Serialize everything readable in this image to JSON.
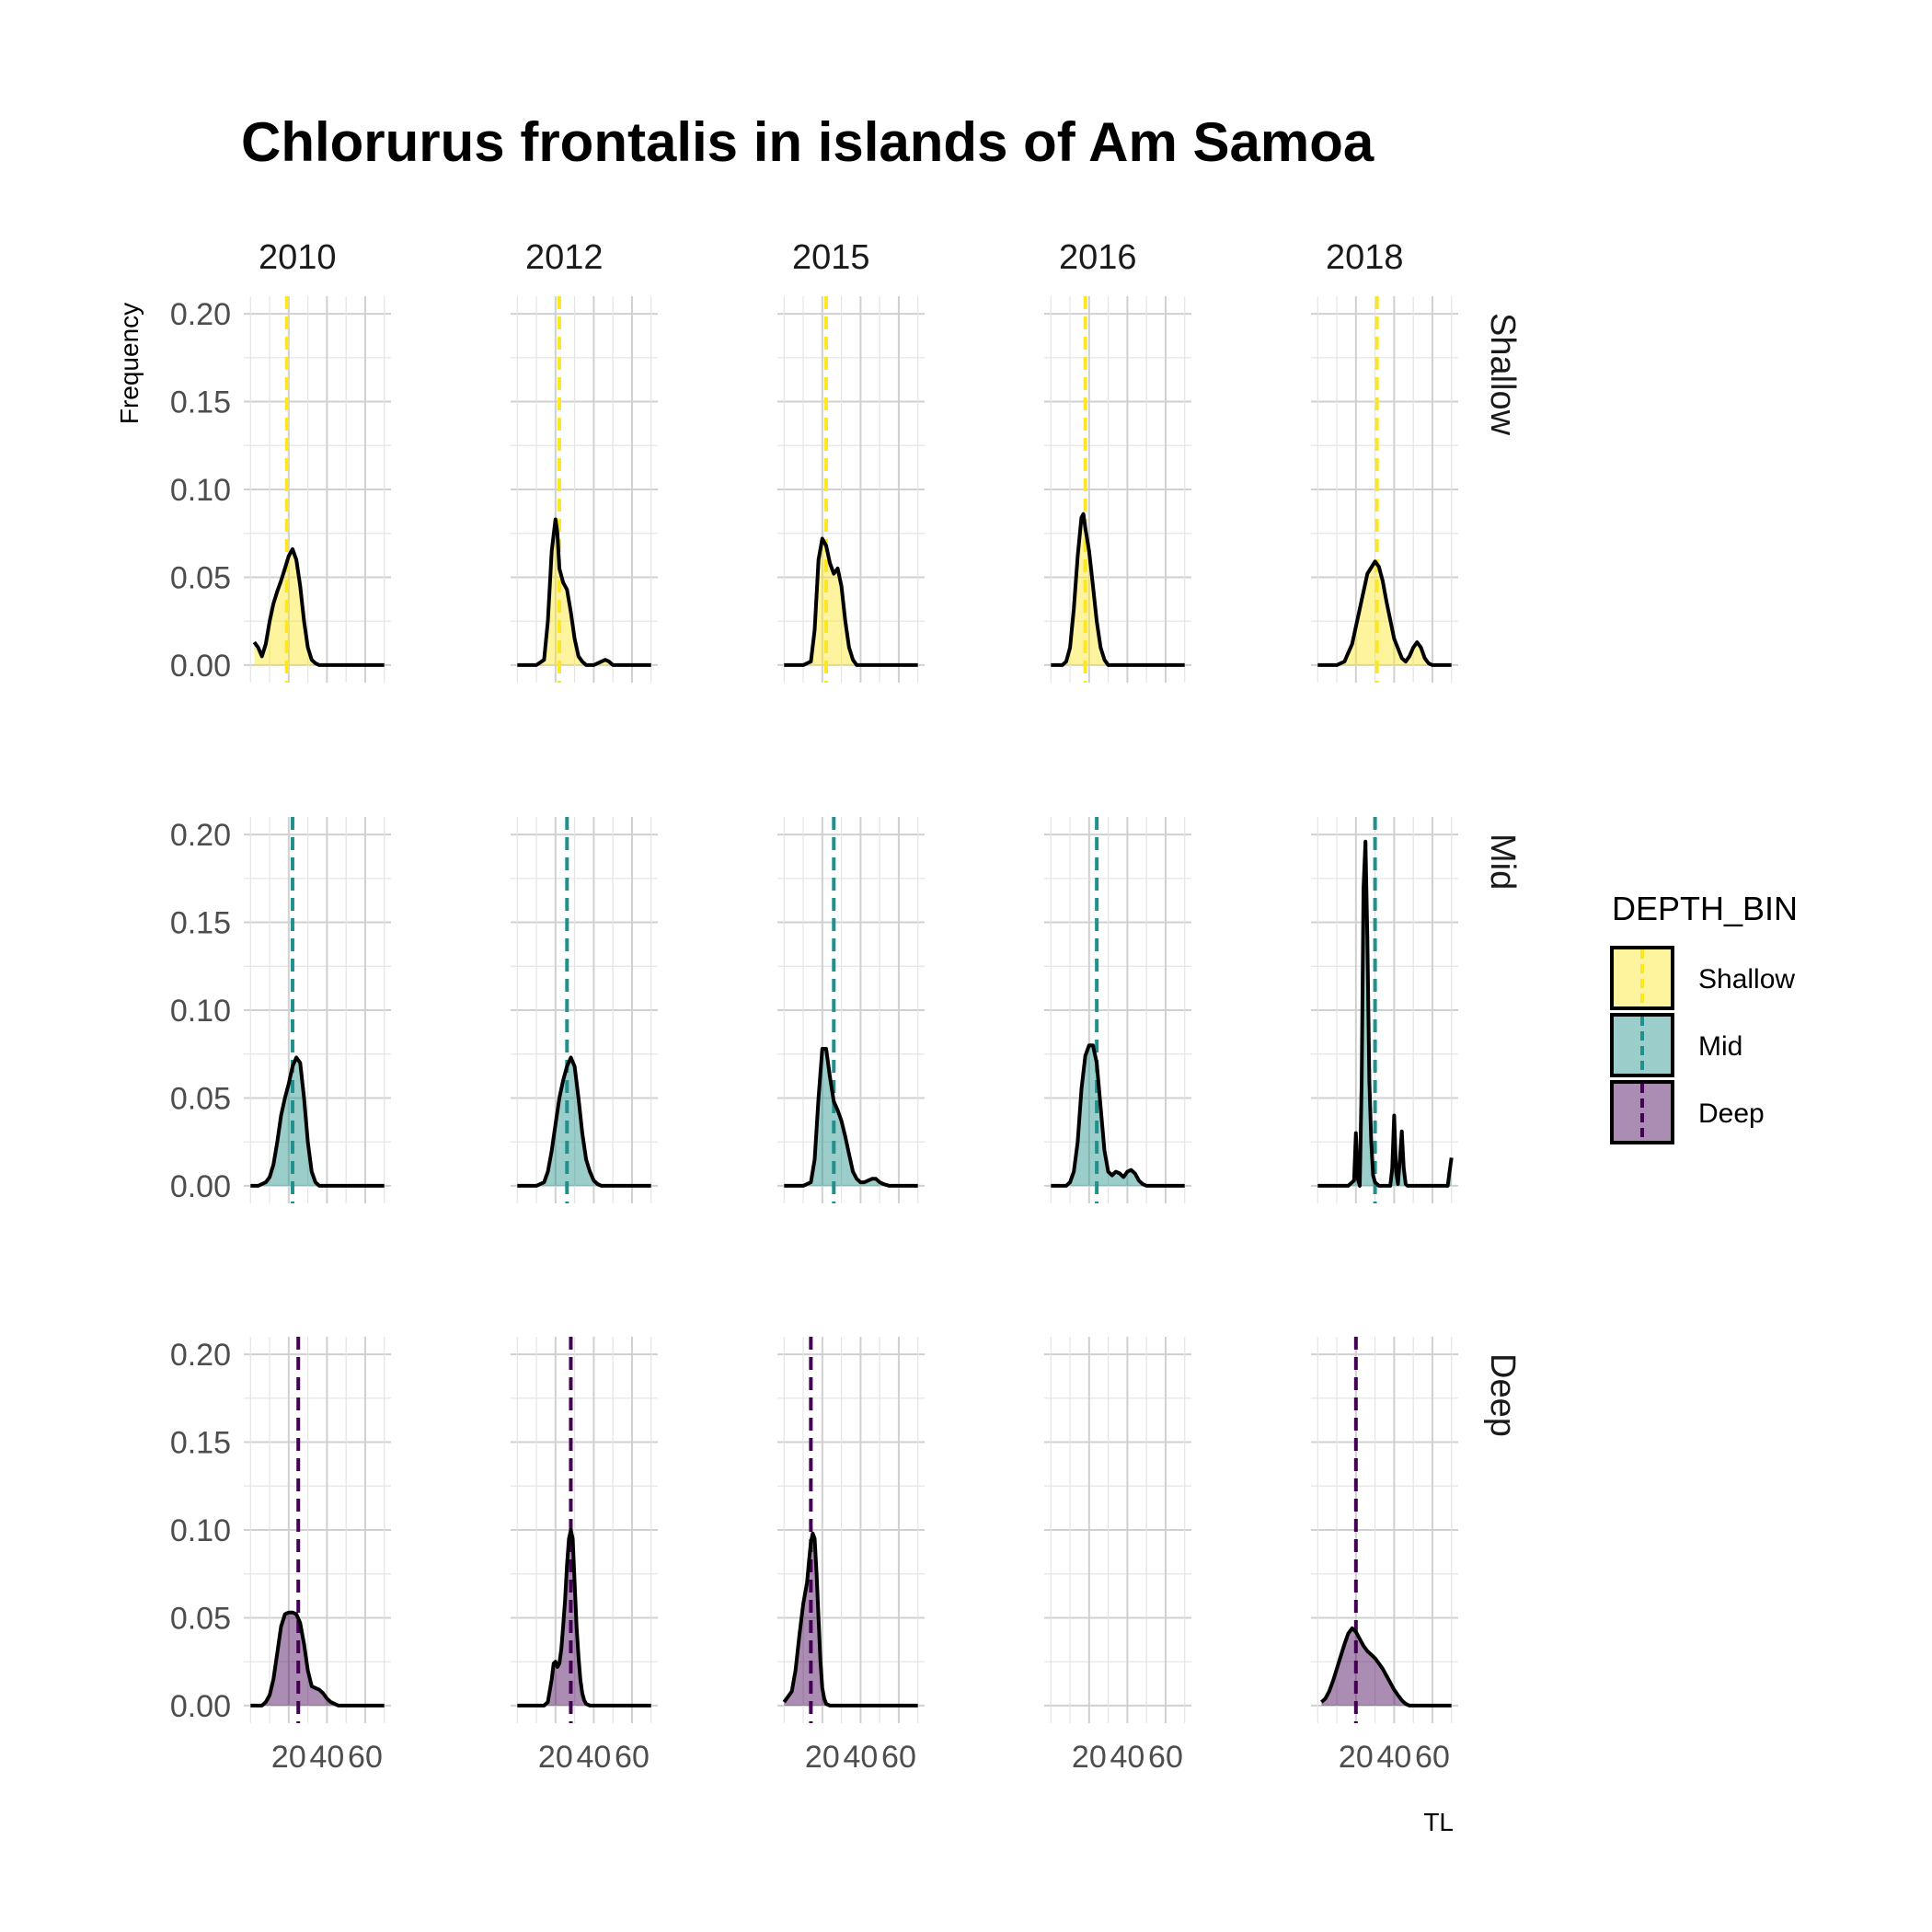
{
  "chart_data": {
    "type": "area",
    "title": "Chlorurus frontalis in islands of Am Samoa",
    "xlabel": "TL",
    "ylabel": "Frequency",
    "ylim": [
      0,
      0.2
    ],
    "yticks": [
      "0.00",
      "0.05",
      "0.10",
      "0.15",
      "0.20"
    ],
    "xlim": [
      0,
      70
    ],
    "xticks": [
      {
        "value": 20,
        "label": "20"
      },
      {
        "value": 40,
        "label": "40"
      },
      {
        "value": 60,
        "label": "60"
      }
    ],
    "grid": true,
    "columns": [
      "2010",
      "2012",
      "2015",
      "2016",
      "2018"
    ],
    "rows": [
      "Shallow",
      "Mid",
      "Deep"
    ],
    "legend": {
      "title": "DEPTH_BIN",
      "position": "right",
      "items": [
        {
          "label": "Shallow",
          "fill": "#FDE725",
          "line": "#FDE725"
        },
        {
          "label": "Mid",
          "fill": "#21908C",
          "line": "#21908C"
        },
        {
          "label": "Deep",
          "fill": "#440154",
          "line": "#440154"
        }
      ]
    },
    "fill_opacity": 0.45,
    "curve_color": "#000000",
    "panels": [
      {
        "row": "Shallow",
        "col": "2010",
        "mean": 19,
        "x": [
          2,
          4,
          6,
          8,
          10,
          12,
          14,
          16,
          18,
          20,
          22,
          24,
          26,
          28,
          30,
          32,
          34,
          36,
          38,
          40,
          45,
          50,
          55,
          60,
          65,
          70
        ],
        "y": [
          0.013,
          0.01,
          0.005,
          0.012,
          0.025,
          0.035,
          0.042,
          0.048,
          0.055,
          0.062,
          0.066,
          0.06,
          0.045,
          0.025,
          0.01,
          0.003,
          0.001,
          0,
          0,
          0,
          0,
          0,
          0,
          0,
          0,
          0
        ]
      },
      {
        "row": "Shallow",
        "col": "2012",
        "mean": 22,
        "x": [
          0,
          10,
          14,
          16,
          18,
          20,
          21,
          22,
          24,
          26,
          28,
          30,
          32,
          34,
          36,
          40,
          44,
          46,
          48,
          50,
          55,
          60,
          70
        ],
        "y": [
          0,
          0,
          0.003,
          0.025,
          0.065,
          0.083,
          0.075,
          0.055,
          0.047,
          0.043,
          0.03,
          0.015,
          0.005,
          0.002,
          0,
          0,
          0.002,
          0.003,
          0.002,
          0,
          0,
          0,
          0
        ]
      },
      {
        "row": "Shallow",
        "col": "2015",
        "mean": 22,
        "x": [
          0,
          10,
          14,
          16,
          18,
          20,
          22,
          24,
          26,
          28,
          30,
          32,
          34,
          36,
          38,
          40,
          45,
          70
        ],
        "y": [
          0,
          0,
          0.002,
          0.02,
          0.06,
          0.072,
          0.068,
          0.058,
          0.052,
          0.055,
          0.045,
          0.025,
          0.01,
          0.003,
          0,
          0,
          0,
          0
        ]
      },
      {
        "row": "Shallow",
        "col": "2016",
        "mean": 18,
        "x": [
          0,
          6,
          8,
          10,
          12,
          14,
          16,
          17,
          18,
          20,
          22,
          24,
          26,
          28,
          30,
          32,
          34,
          70
        ],
        "y": [
          0,
          0,
          0.002,
          0.01,
          0.032,
          0.062,
          0.084,
          0.086,
          0.078,
          0.065,
          0.045,
          0.025,
          0.01,
          0.003,
          0,
          0,
          0,
          0
        ]
      },
      {
        "row": "Shallow",
        "col": "2018",
        "mean": 31,
        "x": [
          0,
          10,
          14,
          18,
          22,
          26,
          30,
          32,
          34,
          36,
          40,
          44,
          46,
          48,
          50,
          52,
          54,
          56,
          58,
          60,
          70
        ],
        "y": [
          0,
          0,
          0.002,
          0.012,
          0.032,
          0.052,
          0.059,
          0.056,
          0.048,
          0.036,
          0.015,
          0.004,
          0.002,
          0.005,
          0.01,
          0.013,
          0.01,
          0.004,
          0.001,
          0,
          0
        ]
      },
      {
        "row": "Mid",
        "col": "2010",
        "mean": 22,
        "x": [
          0,
          4,
          8,
          10,
          12,
          14,
          16,
          18,
          20,
          22,
          24,
          26,
          28,
          30,
          32,
          34,
          36,
          38,
          40,
          45,
          70
        ],
        "y": [
          0,
          0,
          0.002,
          0.005,
          0.012,
          0.025,
          0.04,
          0.05,
          0.058,
          0.068,
          0.073,
          0.07,
          0.05,
          0.025,
          0.008,
          0.002,
          0,
          0,
          0,
          0,
          0
        ]
      },
      {
        "row": "Mid",
        "col": "2012",
        "mean": 26,
        "x": [
          0,
          10,
          14,
          16,
          18,
          20,
          22,
          24,
          26,
          28,
          30,
          32,
          34,
          36,
          38,
          40,
          42,
          44,
          46,
          70
        ],
        "y": [
          0,
          0,
          0.002,
          0.008,
          0.02,
          0.035,
          0.05,
          0.06,
          0.068,
          0.073,
          0.068,
          0.05,
          0.03,
          0.015,
          0.008,
          0.003,
          0.001,
          0,
          0,
          0
        ]
      },
      {
        "row": "Mid",
        "col": "2015",
        "mean": 26,
        "x": [
          0,
          10,
          14,
          16,
          18,
          20,
          22,
          24,
          26,
          28,
          30,
          32,
          34,
          36,
          38,
          40,
          42,
          44,
          46,
          48,
          50,
          52,
          55,
          60,
          70
        ],
        "y": [
          0,
          0,
          0.002,
          0.015,
          0.05,
          0.078,
          0.078,
          0.062,
          0.048,
          0.043,
          0.037,
          0.028,
          0.018,
          0.008,
          0.004,
          0.002,
          0.002,
          0.003,
          0.004,
          0.004,
          0.002,
          0.001,
          0,
          0,
          0
        ]
      },
      {
        "row": "Mid",
        "col": "2016",
        "mean": 24,
        "x": [
          0,
          8,
          10,
          12,
          14,
          16,
          18,
          20,
          22,
          24,
          26,
          28,
          30,
          32,
          34,
          36,
          38,
          40,
          42,
          44,
          46,
          48,
          50,
          52,
          70
        ],
        "y": [
          0,
          0,
          0.002,
          0.008,
          0.025,
          0.055,
          0.074,
          0.08,
          0.08,
          0.07,
          0.045,
          0.02,
          0.008,
          0.006,
          0.008,
          0.007,
          0.005,
          0.008,
          0.009,
          0.007,
          0.003,
          0.001,
          0,
          0,
          0
        ]
      },
      {
        "row": "Mid",
        "col": "2018",
        "mean": 30,
        "x": [
          0,
          16,
          19,
          20,
          21,
          22,
          23,
          24,
          25,
          26,
          27,
          28,
          29,
          30,
          31,
          32,
          33,
          34,
          38,
          39,
          40,
          41,
          42,
          43,
          44,
          45,
          46,
          47,
          48,
          68,
          69,
          70
        ],
        "y": [
          0,
          0,
          0.003,
          0.03,
          0.004,
          0,
          0.06,
          0.17,
          0.196,
          0.14,
          0.06,
          0.025,
          0.006,
          0.002,
          0.001,
          0,
          0,
          0,
          0,
          0.01,
          0.04,
          0.008,
          0.001,
          0.015,
          0.031,
          0.01,
          0.001,
          0,
          0,
          0,
          0.008,
          0.016
        ]
      },
      {
        "row": "Deep",
        "col": "2010",
        "mean": 25,
        "x": [
          0,
          6,
          8,
          10,
          12,
          14,
          16,
          18,
          20,
          22,
          24,
          26,
          28,
          30,
          32,
          34,
          36,
          38,
          40,
          42,
          44,
          46,
          48,
          50,
          70
        ],
        "y": [
          0,
          0,
          0.002,
          0.006,
          0.015,
          0.03,
          0.045,
          0.052,
          0.053,
          0.053,
          0.052,
          0.047,
          0.035,
          0.02,
          0.011,
          0.01,
          0.009,
          0.007,
          0.004,
          0.002,
          0.001,
          0,
          0,
          0,
          0
        ]
      },
      {
        "row": "Deep",
        "col": "2012",
        "mean": 28,
        "x": [
          0,
          14,
          16,
          18,
          19,
          20,
          21,
          22,
          23,
          24,
          25,
          26,
          27,
          28,
          29,
          30,
          31,
          32,
          33,
          34,
          35,
          36,
          38,
          40,
          45,
          70
        ],
        "y": [
          0,
          0,
          0.002,
          0.015,
          0.024,
          0.025,
          0.022,
          0.024,
          0.032,
          0.045,
          0.06,
          0.08,
          0.095,
          0.1,
          0.095,
          0.07,
          0.045,
          0.028,
          0.015,
          0.007,
          0.003,
          0.001,
          0,
          0,
          0,
          0
        ]
      },
      {
        "row": "Deep",
        "col": "2015",
        "mean": 14,
        "x": [
          0,
          4,
          6,
          8,
          10,
          12,
          13,
          14,
          15,
          16,
          17,
          18,
          19,
          20,
          21,
          22,
          24,
          70
        ],
        "y": [
          0.002,
          0.008,
          0.02,
          0.04,
          0.058,
          0.07,
          0.082,
          0.093,
          0.098,
          0.095,
          0.075,
          0.05,
          0.025,
          0.01,
          0.004,
          0.001,
          0,
          0
        ]
      },
      {
        "row": "Deep",
        "col": "2016",
        "mean": null,
        "x": [],
        "y": []
      },
      {
        "row": "Deep",
        "col": "2018",
        "mean": 20,
        "x": [
          2,
          4,
          6,
          8,
          10,
          12,
          14,
          16,
          18,
          20,
          22,
          24,
          26,
          28,
          30,
          32,
          34,
          36,
          38,
          40,
          42,
          44,
          46,
          48,
          50,
          52,
          54,
          56,
          58,
          60,
          70
        ],
        "y": [
          0.002,
          0.004,
          0.008,
          0.014,
          0.021,
          0.028,
          0.035,
          0.041,
          0.044,
          0.042,
          0.038,
          0.034,
          0.031,
          0.029,
          0.027,
          0.024,
          0.021,
          0.017,
          0.013,
          0.009,
          0.006,
          0.003,
          0.001,
          0,
          0,
          0,
          0,
          0,
          0,
          0,
          0
        ]
      }
    ]
  }
}
